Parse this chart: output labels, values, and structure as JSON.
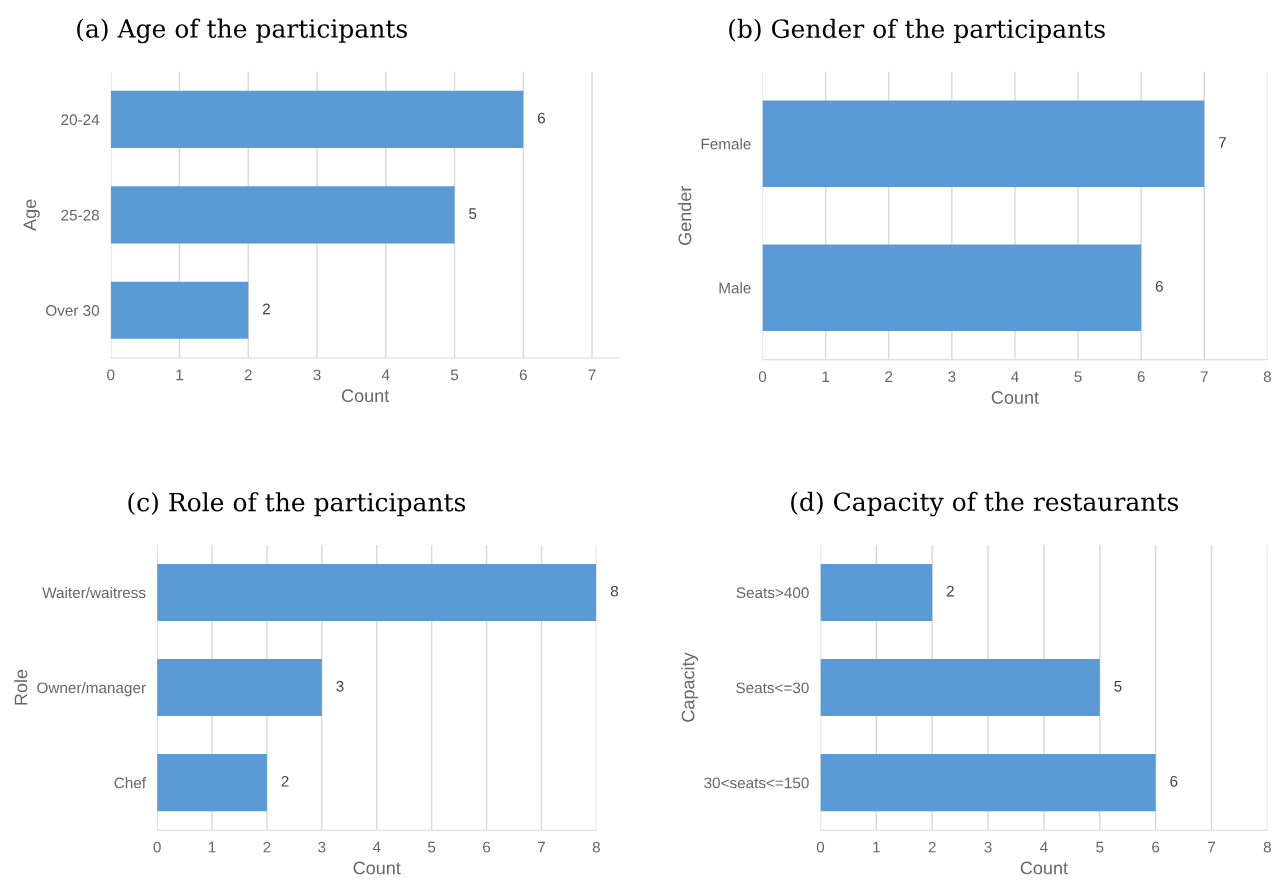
{
  "chart_data": [
    {
      "type": "bar",
      "orientation": "horizontal",
      "title": "(a) Age of the participants",
      "xlabel": "Count",
      "ylabel": "Age",
      "categories": [
        "20-24",
        "25-28",
        "Over 30"
      ],
      "values": [
        6,
        5,
        2
      ],
      "color": "#5b9bd5",
      "xlim": [
        0,
        7.4
      ],
      "xticks": [
        0,
        1,
        2,
        3,
        4,
        5,
        6,
        7
      ],
      "grid": "x",
      "data_labels": true
    },
    {
      "type": "bar",
      "orientation": "horizontal",
      "title": "(b) Gender of the participants",
      "xlabel": "Count",
      "ylabel": "Gender",
      "categories": [
        "Female",
        "Male"
      ],
      "values": [
        7,
        6
      ],
      "color": "#5b9bd5",
      "xlim": [
        0,
        8
      ],
      "xticks": [
        0,
        1,
        2,
        3,
        4,
        5,
        6,
        7,
        8
      ],
      "grid": "x",
      "data_labels": true
    },
    {
      "type": "bar",
      "orientation": "horizontal",
      "title": "(c) Role of the participants",
      "xlabel": "Count",
      "ylabel": "Role",
      "categories": [
        "Waiter/waitress",
        "Owner/manager",
        "Chef"
      ],
      "values": [
        8,
        3,
        2
      ],
      "color": "#5b9bd5",
      "xlim": [
        0,
        8
      ],
      "xticks": [
        0,
        1,
        2,
        3,
        4,
        5,
        6,
        7,
        8
      ],
      "grid": "x",
      "data_labels": true
    },
    {
      "type": "bar",
      "orientation": "horizontal",
      "title": "(d) Capacity of the restaurants",
      "xlabel": "Count",
      "ylabel": "Capacity",
      "categories": [
        "Seats>400",
        "Seats<=30",
        "30<seats<=150"
      ],
      "values": [
        2,
        5,
        6
      ],
      "color": "#5b9bd5",
      "xlim": [
        0,
        8
      ],
      "xticks": [
        0,
        1,
        2,
        3,
        4,
        5,
        6,
        7,
        8
      ],
      "grid": "x",
      "data_labels": true
    }
  ]
}
